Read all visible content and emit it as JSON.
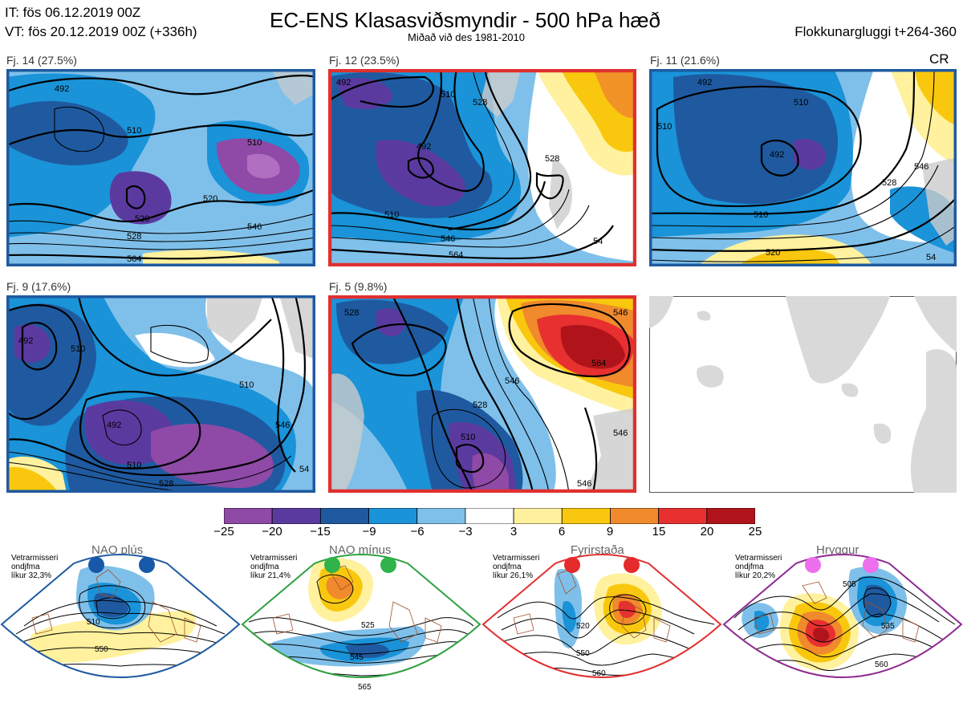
{
  "header": {
    "it_line": "IT: fös 06.12.2019 00Z",
    "vt_line": "VT: fös 20.12.2019 00Z  (+336h)",
    "title": "EC-ENS Klasasviðsmyndir - 500 hPa hæð",
    "subtitle": "Miðað við des 1981-2010",
    "window": "Flokkunargluggi t+264-360",
    "regime_code": "CR"
  },
  "panels": [
    {
      "label": "Fj. 14 (27.5%)",
      "border_color": "#1f5aa0",
      "contours": [
        "492",
        "510",
        "510",
        "520",
        "520",
        "528",
        "546",
        "564"
      ]
    },
    {
      "label": "Fj. 12 (23.5%)",
      "border_color": "#e03030",
      "contours": [
        "492",
        "510",
        "528",
        "492",
        "528",
        "510",
        "546",
        "564",
        "54"
      ]
    },
    {
      "label": "Fj. 11 (21.6%)",
      "border_color": "#1f5aa0",
      "contours": [
        "492",
        "510",
        "510",
        "492",
        "528",
        "546",
        "510",
        "520",
        "54"
      ]
    },
    {
      "label": "Fj. 9 (17.6%)",
      "border_color": "#1f5aa0",
      "contours": [
        "492",
        "510",
        "510",
        "492",
        "510",
        "528",
        "546",
        "54"
      ]
    },
    {
      "label": "Fj. 5 (9.8%)",
      "border_color": "#e03030",
      "contours": [
        "528",
        "546",
        "546",
        "564",
        "528",
        "510",
        "546",
        "546"
      ]
    }
  ],
  "colorbar": {
    "ticks": [
      "−25",
      "−20",
      "−15",
      "−9",
      "−6",
      "−3",
      "3",
      "6",
      "9",
      "15",
      "20",
      "25"
    ],
    "colors": [
      "#8e4aa6",
      "#5b3aa0",
      "#1f5aa0",
      "#1a93d8",
      "#7fc0ea",
      "#ffffff",
      "#fff19e",
      "#f9c80e",
      "#f08a2c",
      "#e83030",
      "#b0141a"
    ]
  },
  "regimes": [
    {
      "title": "NAO plús",
      "note": [
        "Vetrarmisseri",
        "ondjfma",
        "líkur 32,3%"
      ],
      "dot_color": "#1758a8",
      "border_color": "#1f5aa0",
      "contours": [
        "510",
        "550"
      ]
    },
    {
      "title": "NAO mínus",
      "note": [
        "Vetrarmisseri",
        "ondjfma",
        "líkur 21,4%"
      ],
      "dot_color": "#2fb34a",
      "border_color": "#2fa040",
      "contours": [
        "525",
        "545",
        "565"
      ]
    },
    {
      "title": "Fyrirstaða",
      "note": [
        "Vetrarmisseri",
        "ondjfma",
        "líkur 26,1%"
      ],
      "dot_color": "#e52b2b",
      "border_color": "#e03030",
      "contours": [
        "520",
        "550",
        "560"
      ]
    },
    {
      "title": "Hryggur",
      "note": [
        "Vetrarmisseri",
        "ondjfma",
        "líkur 20,2%"
      ],
      "dot_color": "#ee6fee",
      "border_color": "#8e2a90",
      "contours": [
        "505",
        "535",
        "560"
      ]
    }
  ]
}
